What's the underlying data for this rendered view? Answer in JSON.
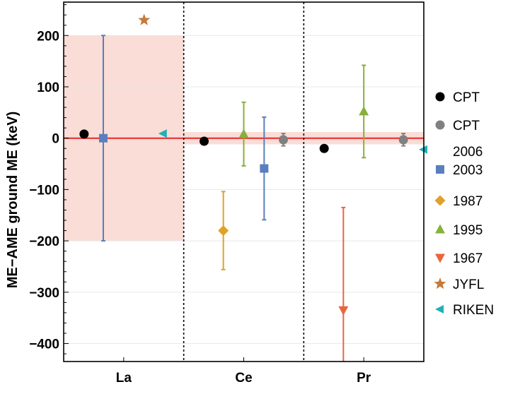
{
  "chart_data": {
    "type": "scatter",
    "ylabel": "ME−AME ground ME (keV)",
    "xlabel": "",
    "categories": [
      "La",
      "Ce",
      "Pr"
    ],
    "ylim": [
      -435,
      265
    ],
    "yticks": [
      200,
      100,
      0,
      -100,
      -200,
      -300,
      -400
    ],
    "ytick_labels": [
      "200",
      "100",
      "0",
      "−100",
      "−200",
      "−300",
      "−400"
    ],
    "reference_line": 0,
    "grid": "horizontal",
    "legend_position": "right",
    "uncertainty_bands": [
      {
        "category": "La",
        "low": -200,
        "high": 200,
        "color": "#f9ddd6"
      },
      {
        "category": "Ce",
        "low": -12,
        "high": 12,
        "color": "#f9ddd6"
      },
      {
        "category": "Pr",
        "low": -12,
        "high": 12,
        "color": "#f9ddd6"
      }
    ],
    "series": [
      {
        "name": "CPT",
        "marker": "circle",
        "color": "#000000",
        "points": [
          {
            "cat": "La",
            "dx": -0.33,
            "y": 8
          },
          {
            "cat": "Ce",
            "dx": -0.33,
            "y": -6
          },
          {
            "cat": "Pr",
            "dx": -0.33,
            "y": -20
          }
        ]
      },
      {
        "name": "CPT 2006",
        "marker": "circle",
        "color": "#808080",
        "points": [
          {
            "cat": "Ce",
            "dx": 0.33,
            "y": -3,
            "err": 12
          },
          {
            "cat": "Pr",
            "dx": 0.33,
            "y": -3,
            "err": 12
          }
        ]
      },
      {
        "name": "2003",
        "marker": "square",
        "color": "#5b7fbd",
        "points": [
          {
            "cat": "La",
            "dx": -0.17,
            "y": 0,
            "err": 200
          },
          {
            "cat": "Ce",
            "dx": 0.17,
            "y": -59,
            "err": 100
          }
        ]
      },
      {
        "name": "1987",
        "marker": "diamond",
        "color": "#e0a12b",
        "points": [
          {
            "cat": "Ce",
            "dx": -0.17,
            "y": -180,
            "err": 76
          }
        ]
      },
      {
        "name": "1995",
        "marker": "triangle-up",
        "color": "#88b03d",
        "points": [
          {
            "cat": "Ce",
            "dx": 0,
            "y": 8,
            "err": 62
          },
          {
            "cat": "Pr",
            "dx": 0,
            "y": 52,
            "err": 90
          }
        ]
      },
      {
        "name": "1967",
        "marker": "triangle-down",
        "color": "#e8663f",
        "points": [
          {
            "cat": "Pr",
            "dx": -0.17,
            "y": -335,
            "err": 200
          }
        ]
      },
      {
        "name": "JYFL",
        "marker": "star",
        "color": "#c57b3c",
        "points": [
          {
            "cat": "La",
            "dx": 0.17,
            "y": 230
          }
        ]
      },
      {
        "name": "RIKEN",
        "marker": "triangle-left",
        "color": "#1fb1b7",
        "points": [
          {
            "cat": "La",
            "dx": 0.33,
            "y": 9
          },
          {
            "cat": "Pr",
            "dx": 0.5,
            "y": -22
          }
        ]
      }
    ],
    "legend": [
      {
        "label": [
          "CPT"
        ],
        "marker": "circle",
        "color": "#000000"
      },
      {
        "label": [
          "CPT",
          "2006"
        ],
        "marker": "circle",
        "color": "#808080"
      },
      {
        "label": [
          "2003"
        ],
        "marker": "square",
        "color": "#5b7fbd"
      },
      {
        "label": [
          "1987"
        ],
        "marker": "diamond",
        "color": "#e0a12b"
      },
      {
        "label": [
          "1995"
        ],
        "marker": "triangle-up",
        "color": "#88b03d"
      },
      {
        "label": [
          "1967"
        ],
        "marker": "triangle-down",
        "color": "#e8663f"
      },
      {
        "label": [
          "JYFL"
        ],
        "marker": "star",
        "color": "#c57b3c"
      },
      {
        "label": [
          "RIKEN"
        ],
        "marker": "triangle-left",
        "color": "#1fb1b7"
      }
    ],
    "colors": {
      "reference_line": "#e8262a",
      "frame": "#000000",
      "grid": "#e8e8e8",
      "divider": "#000000"
    }
  }
}
